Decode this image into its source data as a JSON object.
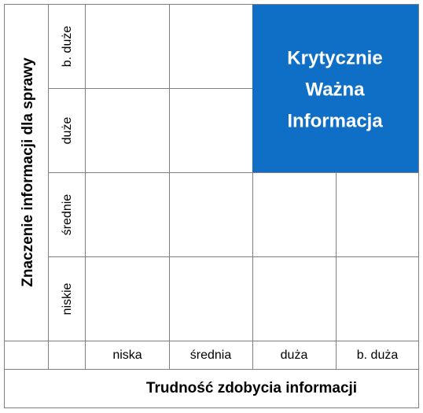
{
  "y_axis": {
    "title": "Znaczenie informacji dla sprawy",
    "labels": [
      "b. duże",
      "duże",
      "średnie",
      "niskie"
    ]
  },
  "x_axis": {
    "title": "Trudność zdobycia informacji",
    "labels": [
      "niska",
      "średnia",
      "duża",
      "b. duża"
    ]
  },
  "highlight": {
    "lines": [
      "Krytycznie",
      "Ważna",
      "Informacja"
    ]
  }
}
